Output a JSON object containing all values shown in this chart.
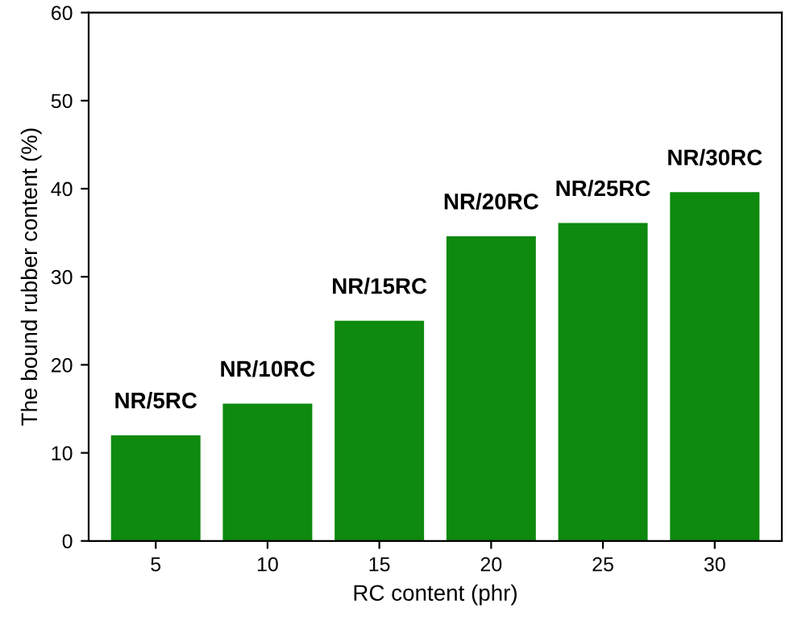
{
  "chart_data": {
    "type": "bar",
    "xlabel": "RC content (phr)",
    "ylabel": "The bound rubber content (%)",
    "categories": [
      "5",
      "10",
      "15",
      "20",
      "25",
      "30"
    ],
    "values": [
      12.0,
      15.6,
      25.0,
      34.6,
      36.1,
      39.6
    ],
    "color": "#0e8a0e",
    "ylim": [
      0,
      60
    ],
    "yticks": [
      0,
      10,
      20,
      30,
      40,
      50,
      60
    ],
    "grid": false,
    "annotations": [
      {
        "text": "NR/5RC",
        "x": "5",
        "y": 12.0
      },
      {
        "text": "NR/10RC",
        "x": "10",
        "y": 15.6
      },
      {
        "text": "NR/15RC",
        "x": "15",
        "y": 25.0
      },
      {
        "text": "NR/20RC",
        "x": "20",
        "y": 34.6
      },
      {
        "text": "NR/25RC",
        "x": "25",
        "y": 36.1
      },
      {
        "text": "NR/30RC",
        "x": "30",
        "y": 39.6
      }
    ]
  }
}
